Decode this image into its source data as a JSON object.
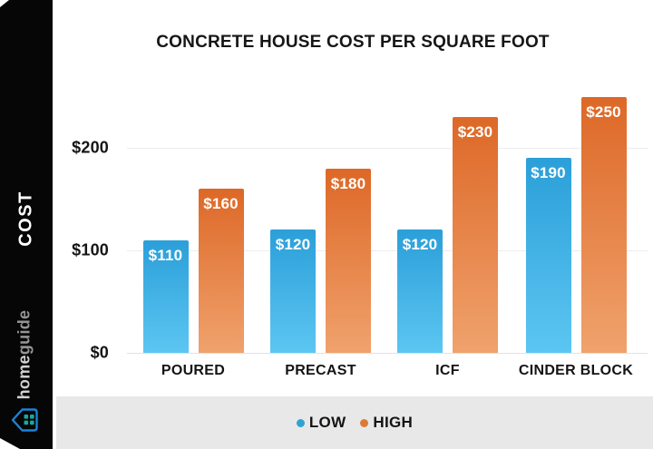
{
  "sidebar": {
    "axis_label": "COST",
    "brand_home": "home",
    "brand_guide": "guide"
  },
  "chart_data": {
    "type": "bar",
    "title": "CONCRETE HOUSE COST PER SQUARE FOOT",
    "categories": [
      "POURED",
      "PRECAST",
      "ICF",
      "CINDER BLOCK"
    ],
    "series": [
      {
        "name": "LOW",
        "values": [
          110,
          120,
          120,
          190
        ],
        "value_labels": [
          "$110",
          "$120",
          "$120",
          "$190"
        ],
        "gradient_top": "#2b9fd9",
        "gradient_bottom": "#5cc6f2",
        "dot_color": "#2fa3d4"
      },
      {
        "name": "HIGH",
        "values": [
          160,
          180,
          230,
          250
        ],
        "value_labels": [
          "$160",
          "$180",
          "$230",
          "$250"
        ],
        "gradient_top": "#dd6827",
        "gradient_bottom": "#f0a26d",
        "dot_color": "#dd7a36"
      }
    ],
    "ylabel": "COST",
    "xlabel": "",
    "ylim": [
      0,
      260
    ],
    "y_ticks": [
      {
        "value": 0,
        "label": "$0"
      },
      {
        "value": 100,
        "label": "$100"
      },
      {
        "value": 200,
        "label": "$200"
      }
    ],
    "grid": "horizontal-light",
    "legend_position": "bottom"
  }
}
